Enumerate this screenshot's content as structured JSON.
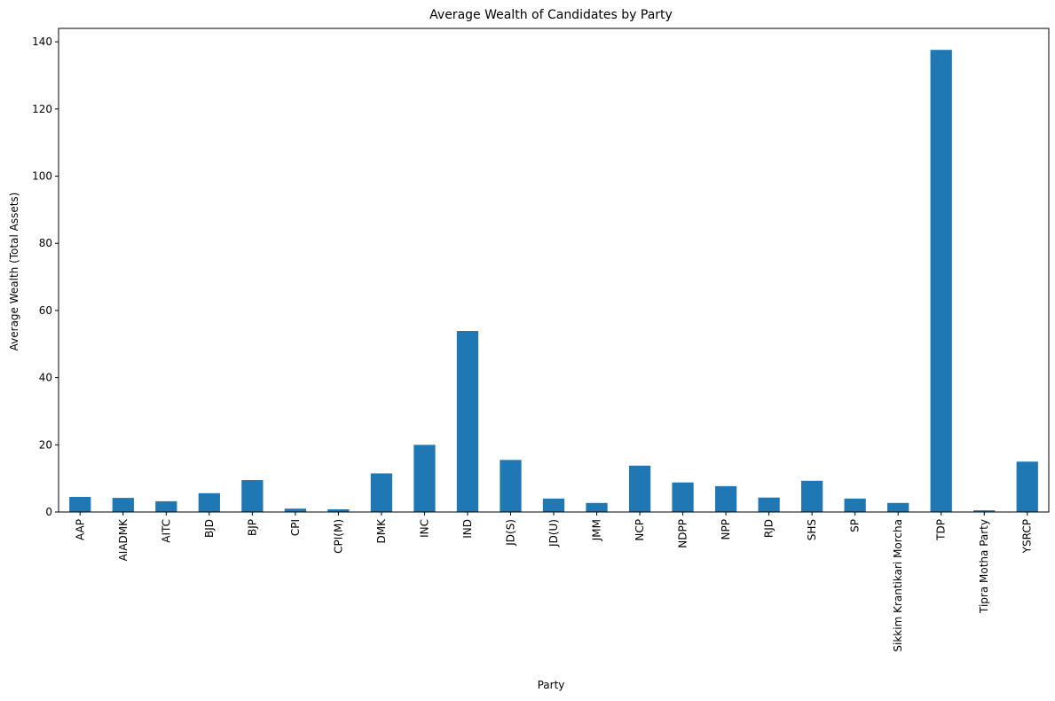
{
  "chart_data": {
    "type": "bar",
    "title": "Average Wealth of Candidates by Party",
    "xlabel": "Party",
    "ylabel": "Average Wealth (Total Assets)",
    "ylim": [
      0,
      144
    ],
    "yticks": [
      0,
      20,
      40,
      60,
      80,
      100,
      120,
      140
    ],
    "grid": false,
    "legend": "none",
    "bar_color": "#1f77b4",
    "categories": [
      "AAP",
      "AIADMK",
      "AITC",
      "BJD",
      "BJP",
      "CPI",
      "CPI(M)",
      "DMK",
      "INC",
      "IND",
      "JD(S)",
      "JD(U)",
      "JMM",
      "NCP",
      "NDPP",
      "NPP",
      "RJD",
      "SHS",
      "SP",
      "Sikkim Krantikari Morcha",
      "TDP",
      "Tipra Motha Party",
      "YSRCP"
    ],
    "values": [
      4.5,
      4.2,
      3.2,
      5.6,
      9.5,
      1.0,
      0.8,
      11.5,
      20.0,
      53.9,
      15.5,
      4.0,
      2.7,
      13.8,
      8.8,
      7.7,
      4.3,
      9.3,
      4.0,
      2.7,
      137.6,
      0.5,
      15.0
    ]
  }
}
